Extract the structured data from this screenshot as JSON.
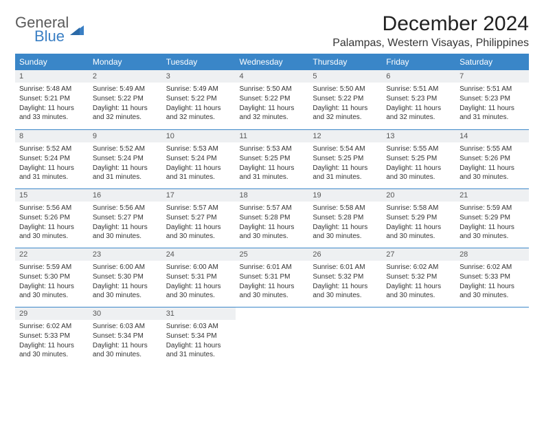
{
  "logo": {
    "line1": "General",
    "line2": "Blue"
  },
  "title": "December 2024",
  "location": "Palampas, Western Visayas, Philippines",
  "colors": {
    "header_bg": "#3a86c8",
    "header_text": "#ffffff",
    "daynum_bg": "#eef0f2",
    "rule": "#3a86c8",
    "logo_gray": "#5a5a5a",
    "logo_blue": "#3a7fc4"
  },
  "dow": [
    "Sunday",
    "Monday",
    "Tuesday",
    "Wednesday",
    "Thursday",
    "Friday",
    "Saturday"
  ],
  "weeks": [
    [
      {
        "n": "1",
        "sr": "Sunrise: 5:48 AM",
        "ss": "Sunset: 5:21 PM",
        "dl": "Daylight: 11 hours and 33 minutes."
      },
      {
        "n": "2",
        "sr": "Sunrise: 5:49 AM",
        "ss": "Sunset: 5:22 PM",
        "dl": "Daylight: 11 hours and 32 minutes."
      },
      {
        "n": "3",
        "sr": "Sunrise: 5:49 AM",
        "ss": "Sunset: 5:22 PM",
        "dl": "Daylight: 11 hours and 32 minutes."
      },
      {
        "n": "4",
        "sr": "Sunrise: 5:50 AM",
        "ss": "Sunset: 5:22 PM",
        "dl": "Daylight: 11 hours and 32 minutes."
      },
      {
        "n": "5",
        "sr": "Sunrise: 5:50 AM",
        "ss": "Sunset: 5:22 PM",
        "dl": "Daylight: 11 hours and 32 minutes."
      },
      {
        "n": "6",
        "sr": "Sunrise: 5:51 AM",
        "ss": "Sunset: 5:23 PM",
        "dl": "Daylight: 11 hours and 32 minutes."
      },
      {
        "n": "7",
        "sr": "Sunrise: 5:51 AM",
        "ss": "Sunset: 5:23 PM",
        "dl": "Daylight: 11 hours and 31 minutes."
      }
    ],
    [
      {
        "n": "8",
        "sr": "Sunrise: 5:52 AM",
        "ss": "Sunset: 5:24 PM",
        "dl": "Daylight: 11 hours and 31 minutes."
      },
      {
        "n": "9",
        "sr": "Sunrise: 5:52 AM",
        "ss": "Sunset: 5:24 PM",
        "dl": "Daylight: 11 hours and 31 minutes."
      },
      {
        "n": "10",
        "sr": "Sunrise: 5:53 AM",
        "ss": "Sunset: 5:24 PM",
        "dl": "Daylight: 11 hours and 31 minutes."
      },
      {
        "n": "11",
        "sr": "Sunrise: 5:53 AM",
        "ss": "Sunset: 5:25 PM",
        "dl": "Daylight: 11 hours and 31 minutes."
      },
      {
        "n": "12",
        "sr": "Sunrise: 5:54 AM",
        "ss": "Sunset: 5:25 PM",
        "dl": "Daylight: 11 hours and 31 minutes."
      },
      {
        "n": "13",
        "sr": "Sunrise: 5:55 AM",
        "ss": "Sunset: 5:25 PM",
        "dl": "Daylight: 11 hours and 30 minutes."
      },
      {
        "n": "14",
        "sr": "Sunrise: 5:55 AM",
        "ss": "Sunset: 5:26 PM",
        "dl": "Daylight: 11 hours and 30 minutes."
      }
    ],
    [
      {
        "n": "15",
        "sr": "Sunrise: 5:56 AM",
        "ss": "Sunset: 5:26 PM",
        "dl": "Daylight: 11 hours and 30 minutes."
      },
      {
        "n": "16",
        "sr": "Sunrise: 5:56 AM",
        "ss": "Sunset: 5:27 PM",
        "dl": "Daylight: 11 hours and 30 minutes."
      },
      {
        "n": "17",
        "sr": "Sunrise: 5:57 AM",
        "ss": "Sunset: 5:27 PM",
        "dl": "Daylight: 11 hours and 30 minutes."
      },
      {
        "n": "18",
        "sr": "Sunrise: 5:57 AM",
        "ss": "Sunset: 5:28 PM",
        "dl": "Daylight: 11 hours and 30 minutes."
      },
      {
        "n": "19",
        "sr": "Sunrise: 5:58 AM",
        "ss": "Sunset: 5:28 PM",
        "dl": "Daylight: 11 hours and 30 minutes."
      },
      {
        "n": "20",
        "sr": "Sunrise: 5:58 AM",
        "ss": "Sunset: 5:29 PM",
        "dl": "Daylight: 11 hours and 30 minutes."
      },
      {
        "n": "21",
        "sr": "Sunrise: 5:59 AM",
        "ss": "Sunset: 5:29 PM",
        "dl": "Daylight: 11 hours and 30 minutes."
      }
    ],
    [
      {
        "n": "22",
        "sr": "Sunrise: 5:59 AM",
        "ss": "Sunset: 5:30 PM",
        "dl": "Daylight: 11 hours and 30 minutes."
      },
      {
        "n": "23",
        "sr": "Sunrise: 6:00 AM",
        "ss": "Sunset: 5:30 PM",
        "dl": "Daylight: 11 hours and 30 minutes."
      },
      {
        "n": "24",
        "sr": "Sunrise: 6:00 AM",
        "ss": "Sunset: 5:31 PM",
        "dl": "Daylight: 11 hours and 30 minutes."
      },
      {
        "n": "25",
        "sr": "Sunrise: 6:01 AM",
        "ss": "Sunset: 5:31 PM",
        "dl": "Daylight: 11 hours and 30 minutes."
      },
      {
        "n": "26",
        "sr": "Sunrise: 6:01 AM",
        "ss": "Sunset: 5:32 PM",
        "dl": "Daylight: 11 hours and 30 minutes."
      },
      {
        "n": "27",
        "sr": "Sunrise: 6:02 AM",
        "ss": "Sunset: 5:32 PM",
        "dl": "Daylight: 11 hours and 30 minutes."
      },
      {
        "n": "28",
        "sr": "Sunrise: 6:02 AM",
        "ss": "Sunset: 5:33 PM",
        "dl": "Daylight: 11 hours and 30 minutes."
      }
    ],
    [
      {
        "n": "29",
        "sr": "Sunrise: 6:02 AM",
        "ss": "Sunset: 5:33 PM",
        "dl": "Daylight: 11 hours and 30 minutes."
      },
      {
        "n": "30",
        "sr": "Sunrise: 6:03 AM",
        "ss": "Sunset: 5:34 PM",
        "dl": "Daylight: 11 hours and 30 minutes."
      },
      {
        "n": "31",
        "sr": "Sunrise: 6:03 AM",
        "ss": "Sunset: 5:34 PM",
        "dl": "Daylight: 11 hours and 31 minutes."
      },
      null,
      null,
      null,
      null
    ]
  ]
}
